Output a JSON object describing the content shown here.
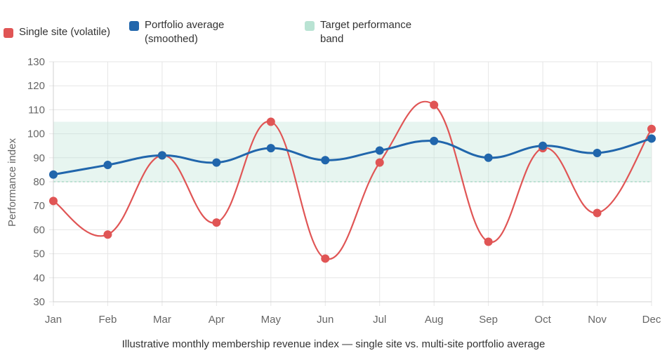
{
  "chart_data": {
    "type": "line",
    "categories": [
      "Jan",
      "Feb",
      "Mar",
      "Apr",
      "May",
      "Jun",
      "Jul",
      "Aug",
      "Sep",
      "Oct",
      "Nov",
      "Dec"
    ],
    "series": [
      {
        "name": "Single site (volatile)",
        "color": "#e05555",
        "values": [
          72,
          58,
          91,
          63,
          105,
          48,
          88,
          112,
          55,
          94,
          67,
          102
        ]
      },
      {
        "name": "Portfolio average (smoothed)",
        "color": "#2166ac",
        "values": [
          83,
          87,
          91,
          88,
          94,
          89,
          93,
          97,
          90,
          95,
          92,
          98
        ]
      }
    ],
    "band": {
      "name": "Target performance band",
      "color": "#b9e3d3",
      "min": 80,
      "max": 105
    },
    "title": "",
    "xlabel": "Illustrative monthly membership revenue index — single site vs. multi-site portfolio average",
    "ylabel": "Performance index",
    "ylim": [
      30,
      130
    ],
    "yticks": [
      "30",
      "40",
      "50",
      "60",
      "70",
      "80",
      "90",
      "100",
      "110",
      "120",
      "130"
    ],
    "grid": true,
    "legend_position": "top-left"
  }
}
